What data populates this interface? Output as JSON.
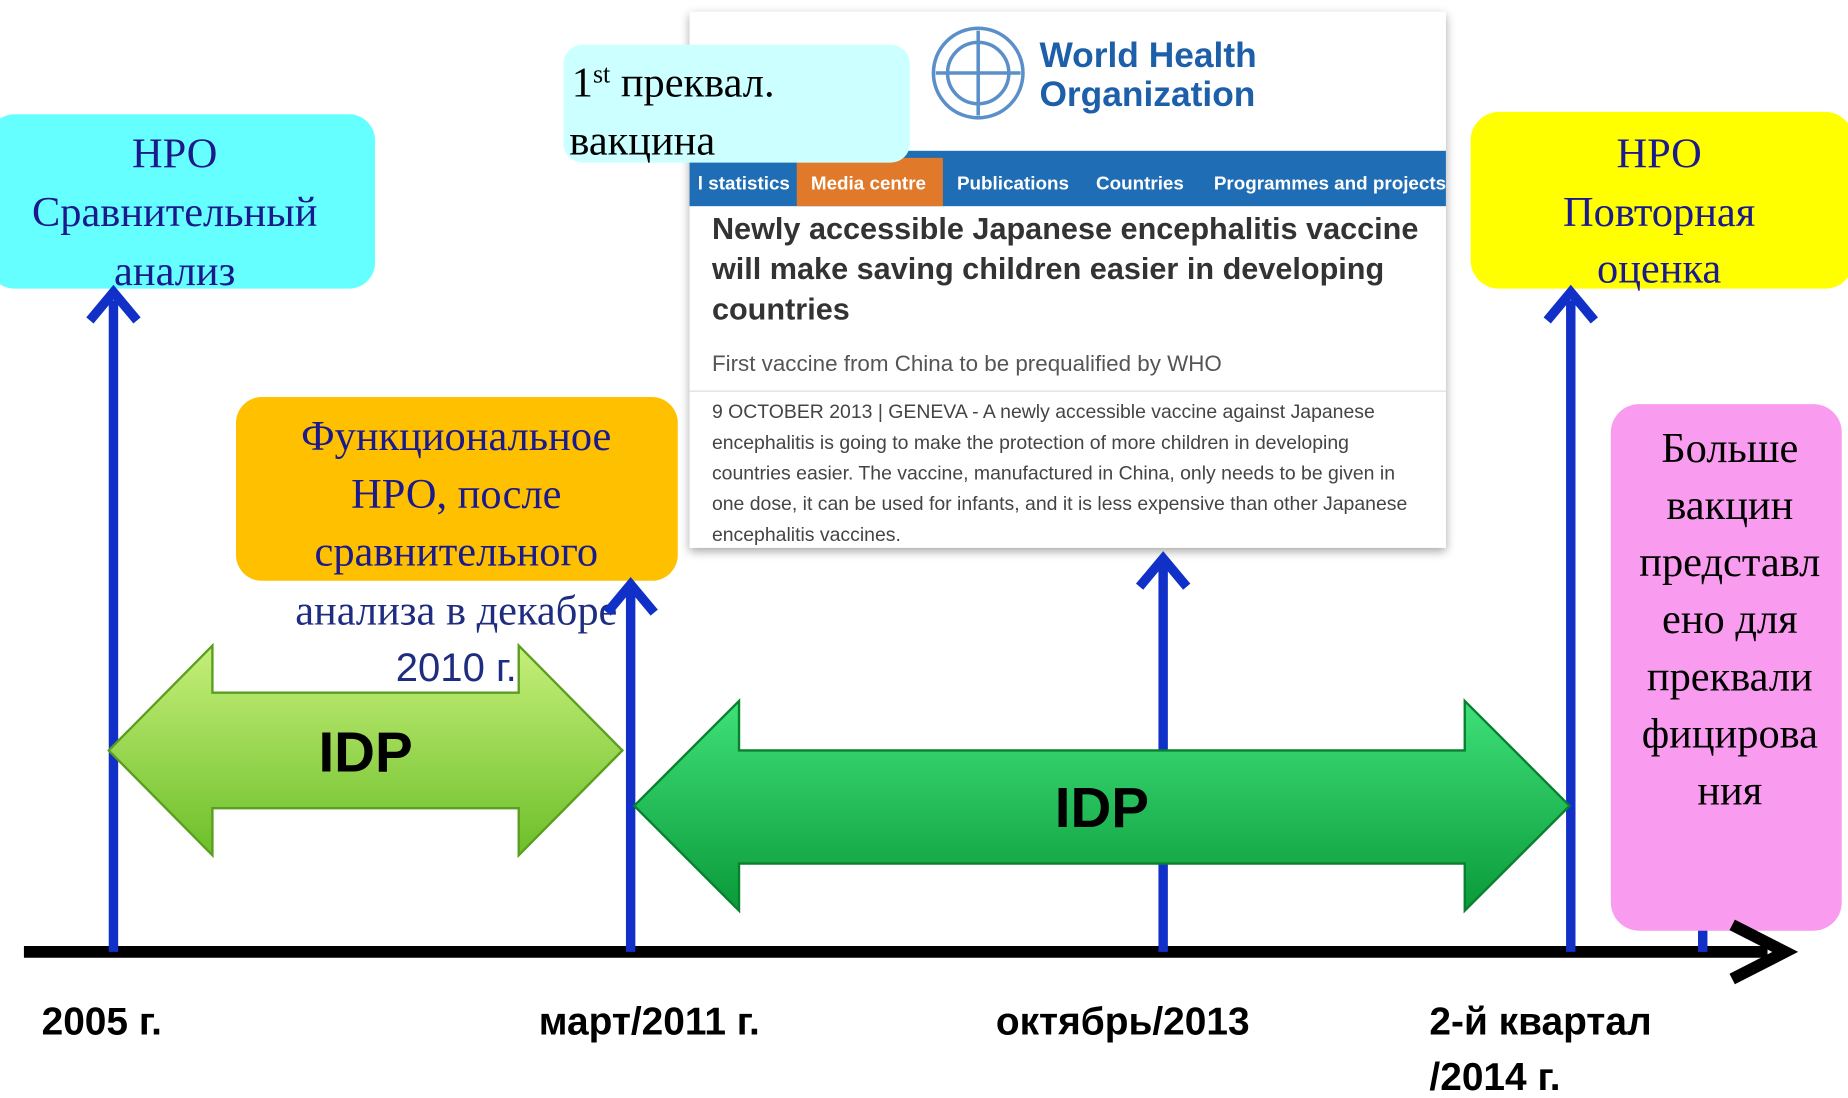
{
  "boxes": {
    "comparative": {
      "lines": [
        "НРО",
        "Сравнительный",
        "анализ"
      ]
    },
    "functional": {
      "lines": [
        "Функциональное",
        "НРО, после",
        "сравнительного"
      ],
      "continued": [
        "анализа в декабре",
        "2010 г."
      ]
    },
    "first": {
      "number": "1",
      "sup": "st",
      "rest": " преквал.",
      "line2": "вакцина"
    },
    "reassessment": {
      "lines": [
        "НРО",
        "Повторная",
        "оценка"
      ]
    },
    "more": {
      "lines": [
        "Больше",
        "вакцин",
        "представл",
        "ено для",
        "преквали",
        "фицирова",
        "ния"
      ]
    }
  },
  "arrows": [
    "IDP",
    "IDP"
  ],
  "timeline": [
    "2005 г.",
    "март/2011 г.",
    "октябрь/2013",
    "2-й квартал",
    "/2014 г."
  ],
  "who": {
    "logo": [
      "World Health",
      "Organization"
    ],
    "nav": [
      "l statistics",
      "Media centre",
      "Publications",
      "Countries",
      "Programmes and projects"
    ],
    "headline": [
      "Newly accessible Japanese encephalitis vaccine",
      "will make saving children easier in developing",
      "countries"
    ],
    "subtitle": "First vaccine from China to be prequalified by WHO",
    "body": [
      "9 OCTOBER 2013 | GENEVA -  A newly accessible vaccine against Japanese",
      "encephalitis is going to make the protection of more children in developing",
      "countries easier. The vaccine, manufactured in China, only needs to be given in",
      "one dose, it can be used for infants, and it is less expensive than other Japanese",
      "encephalitis vaccines."
    ]
  }
}
